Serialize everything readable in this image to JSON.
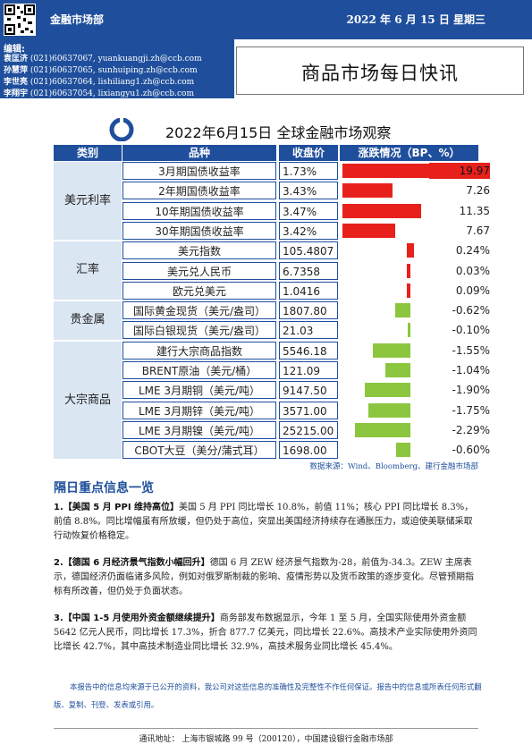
{
  "header": {
    "dept": "金融市场部",
    "date": "2022 年 6 月 15 日  星期三",
    "editors_label": "编辑:",
    "editors": [
      {
        "name": "袁匡济",
        "phone": "(021)60637067,",
        "email": "yuankuangji.zh@ccb.com"
      },
      {
        "name": "孙慧萍",
        "phone": "(021)60637065,",
        "email": "sunhuiping.zh@ccb.com"
      },
      {
        "name": "李世亮",
        "phone": "(021)60637064,",
        "email": "lishiliang1.zh@ccb.com"
      },
      {
        "name": "李翔宇",
        "phone": "(021)60637054,",
        "email": "lixiangyu1.zh@ccb.com"
      }
    ],
    "title": "商品市场每日快讯"
  },
  "table": {
    "section_title": "2022年6月15日 全球金融市场观察",
    "columns": [
      "类别",
      "品种",
      "收盘价",
      "涨跌情况（BP、%）"
    ],
    "categories": [
      "美元利率",
      "汇率",
      "贵金属",
      "大宗商品"
    ],
    "rows": [
      {
        "name": "3月期国债收益率",
        "price": "1.73%",
        "change": "19.97",
        "v": 19.97,
        "highlight": true
      },
      {
        "name": "2年期国债收益率",
        "price": "3.43%",
        "change": "7.26",
        "v": 7.26
      },
      {
        "name": "10年期国债收益率",
        "price": "3.47%",
        "change": "11.35",
        "v": 11.35
      },
      {
        "name": "30年期国债收益率",
        "price": "3.42%",
        "change": "7.67",
        "v": 7.67
      },
      {
        "name": "美元指数",
        "price": "105.4807",
        "change": "0.24%",
        "v": 0.24
      },
      {
        "name": "美元兑人民币",
        "price": "6.7358",
        "change": "0.03%",
        "v": 0.03
      },
      {
        "name": "欧元兑美元",
        "price": "1.0416",
        "change": "0.09%",
        "v": 0.09
      },
      {
        "name": "国际黄金现货（美元/盎司）",
        "price": "1807.80",
        "change": "-0.62%",
        "v": -0.62
      },
      {
        "name": "国际白银现货（美元/盎司）",
        "price": "21.03",
        "change": "-0.10%",
        "v": -0.1
      },
      {
        "name": "建行大宗商品指数",
        "price": "5546.18",
        "change": "-1.55%",
        "v": -1.55
      },
      {
        "name": "BRENT原油（美元/桶）",
        "price": "121.09",
        "change": "-1.04%",
        "v": -1.04
      },
      {
        "name": "LME 3月期铜（美元/吨）",
        "price": "9147.50",
        "change": "-1.90%",
        "v": -1.9
      },
      {
        "name": "LME 3月期锌（美元/吨）",
        "price": "3571.00",
        "change": "-1.75%",
        "v": -1.75
      },
      {
        "name": "LME 3月期镍（美元/吨）",
        "price": "25215.00",
        "change": "-2.29%",
        "v": -2.29
      },
      {
        "name": "CBOT大豆（美分/蒲式耳）",
        "price": "1698.00",
        "change": "-0.60%",
        "v": -0.6
      }
    ],
    "colors": {
      "rate_bar": "#e8201c",
      "pos_bar": "#e8201c",
      "neg_bar": "#8cc63f",
      "header": "#1f4f9c"
    },
    "source": "数据来源：Wind、Bloomberg、建行金融市场部"
  },
  "news": {
    "heading": "隔日重点信息一览",
    "items": [
      {
        "num": "1.",
        "title": "【美国 5 月 PPI 维持高位】",
        "body": "美国 5 月 PPI 同比增长 10.8%，前值 11%；核心 PPI 同比增长 8.3%，前值 8.8%。同比增幅虽有所放缓，但仍处于高位，突显出美国经济持续存在通胀压力，或迫使美联储采取行动恢复价格稳定。"
      },
      {
        "num": "2.",
        "title": "【德国 6 月经济景气指数小幅回升】",
        "body": "德国 6 月 ZEW 经济景气指数为-28，前值为-34.3。ZEW 主席表示，德国经济仍面临诸多风险，例如对俄罗斯制裁的影响、疫情形势以及货币政策的逐步变化。尽管预期指标有所改善，但仍处于负面状态。"
      },
      {
        "num": "3.",
        "title": "【中国 1-5 月使用外资金额继续提升】",
        "body": "商务部发布数据显示，今年 1 至 5 月，全国实际使用外资金额 5642 亿元人民币，同比增长 17.3%，折合 877.7 亿美元，同比增长 22.6%。高技术产业实际使用外资同比增长 42.7%，其中高技术制造业同比增长 32.9%，高技术服务业同比增长 45.4%。"
      }
    ]
  },
  "disclaimer": "本报告中的信息均来源于已公开的资料，我公司对这些信息的准确性及完整性不作任何保证。报告中的信息或所表任何形式翻版、复制、刊登、发表或引用。",
  "footer": "通讯地址：  上海市银城路 99 号（200120），中国建设银行金融市场部"
}
